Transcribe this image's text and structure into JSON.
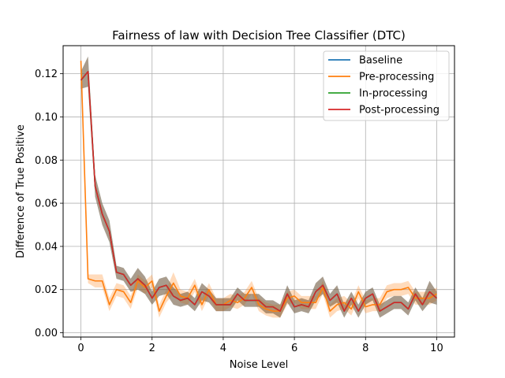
{
  "chart_data": {
    "type": "line",
    "title": "Fairness of law with Decision Tree Classifier (DTC)",
    "xlabel": "Noise Level",
    "ylabel": "Difference of True Positive",
    "xlim": [
      -0.5,
      10.5
    ],
    "ylim": [
      -0.002,
      0.133
    ],
    "xticks": [
      0,
      2,
      4,
      6,
      8,
      10
    ],
    "xtick_labels": [
      "0",
      "2",
      "4",
      "6",
      "8",
      "10"
    ],
    "yticks": [
      0.0,
      0.02,
      0.04,
      0.06,
      0.08,
      0.1,
      0.12
    ],
    "ytick_labels": [
      "0.00",
      "0.02",
      "0.04",
      "0.06",
      "0.08",
      "0.10",
      "0.12"
    ],
    "grid": true,
    "legend_position": "upper right",
    "x": [
      0.0,
      0.2,
      0.4,
      0.6,
      0.8,
      1.0,
      1.2,
      1.4,
      1.6,
      1.8,
      2.0,
      2.2,
      2.4,
      2.6,
      2.8,
      3.0,
      3.2,
      3.4,
      3.6,
      3.8,
      4.0,
      4.2,
      4.4,
      4.6,
      4.8,
      5.0,
      5.2,
      5.4,
      5.6,
      5.8,
      6.0,
      6.2,
      6.4,
      6.6,
      6.8,
      7.0,
      7.2,
      7.4,
      7.6,
      7.8,
      8.0,
      8.2,
      8.4,
      8.6,
      8.8,
      9.0,
      9.2,
      9.4,
      9.6,
      9.8,
      10.0
    ],
    "series": [
      {
        "name": "Baseline",
        "color": "#1f77b4",
        "values": [
          0.117,
          0.121,
          0.068,
          0.055,
          0.047,
          0.028,
          0.027,
          0.022,
          0.025,
          0.022,
          0.016,
          0.021,
          0.022,
          0.017,
          0.015,
          0.016,
          0.013,
          0.019,
          0.017,
          0.013,
          0.013,
          0.013,
          0.018,
          0.015,
          0.015,
          0.015,
          0.012,
          0.012,
          0.01,
          0.018,
          0.012,
          0.013,
          0.012,
          0.019,
          0.022,
          0.015,
          0.018,
          0.01,
          0.016,
          0.01,
          0.016,
          0.018,
          0.01,
          0.012,
          0.014,
          0.014,
          0.011,
          0.018,
          0.013,
          0.019,
          0.016
        ],
        "band": [
          0.004,
          0.007,
          0.005,
          0.005,
          0.005,
          0.003,
          0.003,
          0.003,
          0.005,
          0.004,
          0.003,
          0.004,
          0.004,
          0.004,
          0.003,
          0.003,
          0.003,
          0.004,
          0.003,
          0.003,
          0.003,
          0.003,
          0.003,
          0.003,
          0.003,
          0.003,
          0.003,
          0.003,
          0.003,
          0.004,
          0.003,
          0.003,
          0.003,
          0.004,
          0.004,
          0.003,
          0.004,
          0.003,
          0.003,
          0.003,
          0.003,
          0.003,
          0.003,
          0.003,
          0.003,
          0.003,
          0.003,
          0.003,
          0.003,
          0.005,
          0.003
        ]
      },
      {
        "name": "Pre-processing",
        "color": "#ff7f0e",
        "values": [
          0.126,
          0.025,
          0.024,
          0.024,
          0.013,
          0.02,
          0.019,
          0.014,
          0.024,
          0.021,
          0.024,
          0.01,
          0.017,
          0.023,
          0.017,
          0.016,
          0.022,
          0.013,
          0.02,
          0.013,
          0.013,
          0.015,
          0.014,
          0.016,
          0.021,
          0.013,
          0.011,
          0.01,
          0.01,
          0.016,
          0.017,
          0.014,
          0.014,
          0.014,
          0.021,
          0.01,
          0.013,
          0.014,
          0.011,
          0.019,
          0.012,
          0.013,
          0.013,
          0.019,
          0.02,
          0.02,
          0.021,
          0.016,
          0.016,
          0.016,
          0.018
        ],
        "band": [
          0.002,
          0.002,
          0.003,
          0.003,
          0.003,
          0.003,
          0.003,
          0.003,
          0.003,
          0.003,
          0.003,
          0.003,
          0.003,
          0.005,
          0.003,
          0.003,
          0.003,
          0.003,
          0.003,
          0.003,
          0.003,
          0.003,
          0.003,
          0.003,
          0.003,
          0.003,
          0.003,
          0.003,
          0.003,
          0.003,
          0.003,
          0.003,
          0.003,
          0.003,
          0.003,
          0.003,
          0.003,
          0.003,
          0.003,
          0.003,
          0.003,
          0.003,
          0.003,
          0.003,
          0.003,
          0.003,
          0.003,
          0.003,
          0.003,
          0.003,
          0.003
        ]
      },
      {
        "name": "In-processing",
        "color": "#2ca02c",
        "values": [
          0.117,
          0.121,
          0.068,
          0.055,
          0.047,
          0.028,
          0.027,
          0.022,
          0.025,
          0.022,
          0.016,
          0.021,
          0.022,
          0.017,
          0.015,
          0.016,
          0.013,
          0.019,
          0.017,
          0.013,
          0.013,
          0.013,
          0.018,
          0.015,
          0.015,
          0.015,
          0.012,
          0.012,
          0.01,
          0.018,
          0.012,
          0.013,
          0.012,
          0.019,
          0.022,
          0.015,
          0.018,
          0.01,
          0.016,
          0.01,
          0.016,
          0.018,
          0.01,
          0.012,
          0.014,
          0.014,
          0.011,
          0.018,
          0.013,
          0.019,
          0.016
        ],
        "band": [
          0.004,
          0.007,
          0.005,
          0.005,
          0.005,
          0.003,
          0.003,
          0.003,
          0.005,
          0.004,
          0.003,
          0.004,
          0.004,
          0.004,
          0.003,
          0.003,
          0.003,
          0.004,
          0.003,
          0.003,
          0.003,
          0.003,
          0.003,
          0.003,
          0.003,
          0.003,
          0.003,
          0.003,
          0.003,
          0.004,
          0.003,
          0.003,
          0.003,
          0.004,
          0.004,
          0.003,
          0.004,
          0.003,
          0.003,
          0.003,
          0.003,
          0.003,
          0.003,
          0.003,
          0.003,
          0.003,
          0.003,
          0.003,
          0.003,
          0.005,
          0.003
        ]
      },
      {
        "name": "Post-processing",
        "color": "#d62728",
        "values": [
          0.117,
          0.121,
          0.068,
          0.055,
          0.047,
          0.028,
          0.027,
          0.022,
          0.025,
          0.022,
          0.016,
          0.021,
          0.022,
          0.017,
          0.015,
          0.016,
          0.013,
          0.019,
          0.017,
          0.013,
          0.013,
          0.013,
          0.018,
          0.015,
          0.015,
          0.015,
          0.012,
          0.012,
          0.01,
          0.018,
          0.012,
          0.013,
          0.012,
          0.019,
          0.022,
          0.015,
          0.018,
          0.01,
          0.016,
          0.01,
          0.016,
          0.018,
          0.01,
          0.012,
          0.014,
          0.014,
          0.011,
          0.018,
          0.013,
          0.019,
          0.016
        ],
        "band": [
          0.004,
          0.007,
          0.005,
          0.005,
          0.005,
          0.003,
          0.003,
          0.003,
          0.005,
          0.004,
          0.003,
          0.004,
          0.004,
          0.004,
          0.003,
          0.003,
          0.003,
          0.004,
          0.003,
          0.003,
          0.003,
          0.003,
          0.003,
          0.003,
          0.003,
          0.003,
          0.003,
          0.003,
          0.003,
          0.004,
          0.003,
          0.003,
          0.003,
          0.004,
          0.004,
          0.003,
          0.004,
          0.003,
          0.003,
          0.003,
          0.003,
          0.003,
          0.003,
          0.003,
          0.003,
          0.003,
          0.003,
          0.003,
          0.003,
          0.005,
          0.003
        ]
      }
    ]
  }
}
